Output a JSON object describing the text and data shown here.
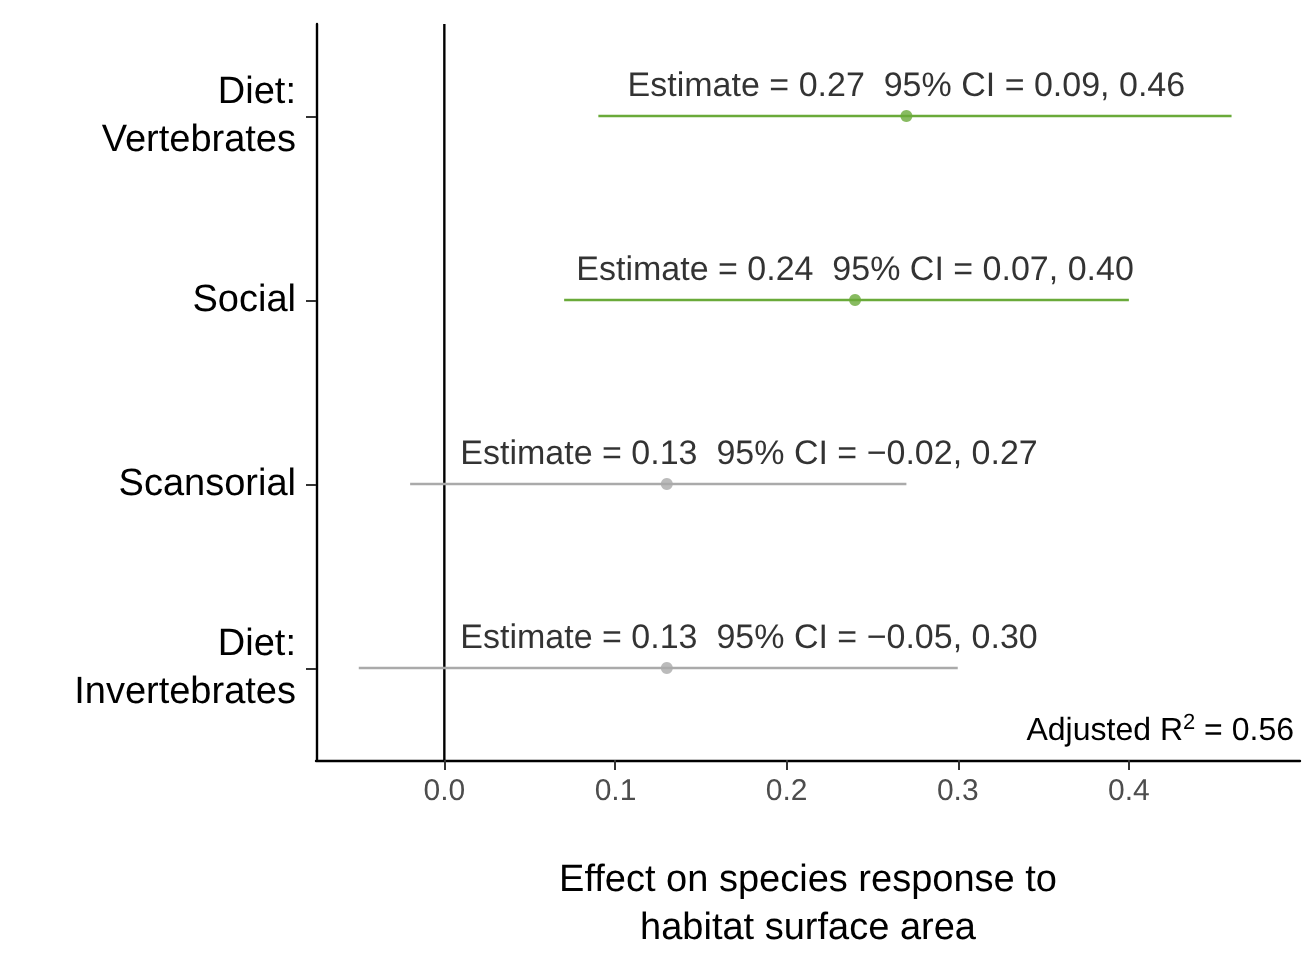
{
  "chart_data": {
    "type": "scatter",
    "orientation": "horizontal",
    "xlabel": "Effect on species response to\nhabitat surface area",
    "categories": [
      "Diet:\nVertebrates",
      "Social",
      "Scansorial",
      "Diet:\nInvertebrates"
    ],
    "values": [
      0.27,
      0.24,
      0.13,
      0.13
    ],
    "errors": [
      [
        0.09,
        0.46
      ],
      [
        0.07,
        0.4
      ],
      [
        -0.02,
        0.27
      ],
      [
        -0.05,
        0.3
      ]
    ],
    "colors": [
      "#6aaa3a",
      "#6aaa3a",
      "#aaaaaa",
      "#aaaaaa"
    ],
    "value_labels": [
      "Estimate = 0.27  95% CI = 0.09, 0.46",
      "Estimate = 0.24  95% CI = 0.07, 0.40",
      "Estimate = 0.13  95% CI = −0.02, 0.27",
      "Estimate = 0.13  95% CI = −0.05, 0.30"
    ],
    "xlim": [
      -0.075,
      0.5
    ],
    "xticks": [
      {
        "value": 0,
        "label": "0.0"
      },
      {
        "value": 0.1,
        "label": "0.1"
      },
      {
        "value": 0.2,
        "label": "0.2"
      },
      {
        "value": 0.3,
        "label": "0.3"
      },
      {
        "value": 0.4,
        "label": "0.4"
      }
    ],
    "ref_lines": [
      {
        "axis": "x",
        "value": 0,
        "color": "#000000"
      }
    ],
    "annotations": [
      "Adjusted R$^{2}$ = 0.56"
    ],
    "marker": "circle"
  }
}
